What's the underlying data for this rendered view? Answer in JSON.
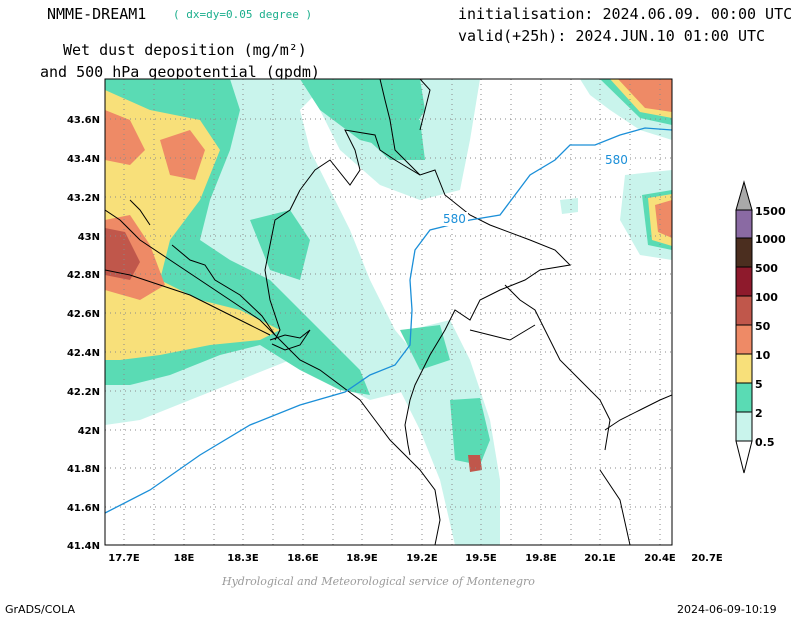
{
  "header": {
    "model": "NMME-DREAM1",
    "grid_note": "( dx=dy=0.05 degree )",
    "initialisation": "initialisation: 2024.06.09. 00:00 UTC",
    "valid": "valid(+25h): 2024.JUN.10 01:00 UTC",
    "title_line1": "Wet dust deposition (mg/m²)",
    "title_line2": "and 500 hPa geopotential (gpdm)"
  },
  "map": {
    "lat_ticks": [
      "43.6N",
      "43.4N",
      "43.2N",
      "43N",
      "42.8N",
      "42.6N",
      "42.4N",
      "42.2N",
      "42N",
      "41.8N",
      "41.6N",
      "41.4N"
    ],
    "lon_ticks": [
      "17.7E",
      "18E",
      "18.3E",
      "18.6E",
      "18.9E",
      "19.2E",
      "19.5E",
      "19.8E",
      "20.1E",
      "20.4E",
      "20.7E"
    ],
    "geopotential_contours": [
      {
        "label": "580",
        "color": "#1b8fd8"
      },
      {
        "label": "580",
        "color": "#1b8fd8"
      }
    ]
  },
  "colorbar": {
    "levels": [
      "0.5",
      "2",
      "5",
      "10",
      "50",
      "100",
      "500",
      "1000",
      "1500"
    ],
    "colors": [
      "#c9f4ec",
      "#5adbb4",
      "#f8e07a",
      "#ee8a66",
      "#c0574b",
      "#8e1a2c",
      "#4b2e1f",
      "#8a6aa3",
      "#a9a9a9"
    ]
  },
  "footer": {
    "credit": "Hydrological and Meteorological service of Montenegro",
    "software": "GrADS/COLA",
    "timestamp": "2024-06-09-10:19"
  }
}
